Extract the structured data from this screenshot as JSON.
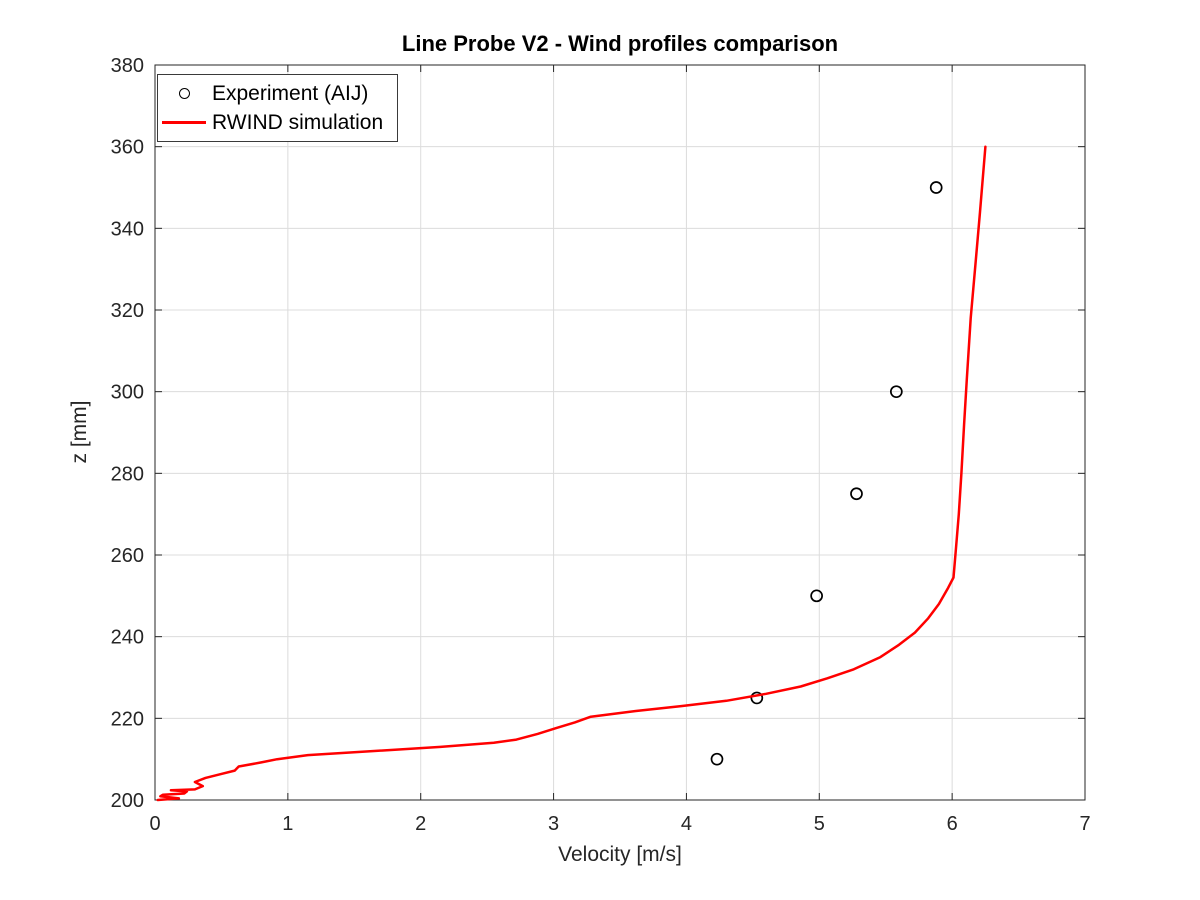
{
  "chart_data": {
    "type": "line",
    "title": "Line Probe V2 - Wind profiles comparison",
    "xlabel": "Velocity [m/s]",
    "ylabel": "z [mm]",
    "xlim": [
      0,
      7
    ],
    "ylim": [
      200,
      380
    ],
    "xticks": [
      0,
      1,
      2,
      3,
      4,
      5,
      6,
      7
    ],
    "yticks": [
      200,
      220,
      240,
      260,
      280,
      300,
      320,
      340,
      360,
      380
    ],
    "grid": true,
    "legend_position": "top-left",
    "colors": {
      "axis": "#262626",
      "grid": "#dcdcdc",
      "experiment": "#000000",
      "simulation": "#ff0000",
      "background": "#ffffff"
    },
    "series": [
      {
        "name": "Experiment (AIJ)",
        "type": "scatter",
        "marker": "circle",
        "color": "#000000",
        "points": [
          [
            4.23,
            210
          ],
          [
            4.53,
            225
          ],
          [
            4.98,
            250
          ],
          [
            5.28,
            275
          ],
          [
            5.58,
            300
          ],
          [
            5.88,
            350
          ]
        ]
      },
      {
        "name": "RWIND simulation",
        "type": "line",
        "color": "#ff0000",
        "points": [
          [
            0.02,
            200
          ],
          [
            0.18,
            200.4
          ],
          [
            0.04,
            200.9
          ],
          [
            0.06,
            201.3
          ],
          [
            0.22,
            201.6
          ],
          [
            0.24,
            202.1
          ],
          [
            0.12,
            202.4
          ],
          [
            0.3,
            202.6
          ],
          [
            0.36,
            203.4
          ],
          [
            0.3,
            204.4
          ],
          [
            0.38,
            205.4
          ],
          [
            0.5,
            206.4
          ],
          [
            0.6,
            207.2
          ],
          [
            0.63,
            208.2
          ],
          [
            0.8,
            209.2
          ],
          [
            0.92,
            210.0
          ],
          [
            1.15,
            211.0
          ],
          [
            1.65,
            212.0
          ],
          [
            2.15,
            213.0
          ],
          [
            2.55,
            214.0
          ],
          [
            2.72,
            214.8
          ],
          [
            2.88,
            216.2
          ],
          [
            3.02,
            217.6
          ],
          [
            3.16,
            219.0
          ],
          [
            3.28,
            220.4
          ],
          [
            3.62,
            221.8
          ],
          [
            3.96,
            223.0
          ],
          [
            4.3,
            224.3
          ],
          [
            4.6,
            226.0
          ],
          [
            4.86,
            227.8
          ],
          [
            5.06,
            229.8
          ],
          [
            5.26,
            232.0
          ],
          [
            5.46,
            235.0
          ],
          [
            5.6,
            238.0
          ],
          [
            5.72,
            241.0
          ],
          [
            5.82,
            244.5
          ],
          [
            5.9,
            248.0
          ],
          [
            5.97,
            252.0
          ],
          [
            6.01,
            254.5
          ],
          [
            6.03,
            262.0
          ],
          [
            6.05,
            270.0
          ],
          [
            6.07,
            280.0
          ],
          [
            6.09,
            292.0
          ],
          [
            6.11,
            303.0
          ],
          [
            6.14,
            318.0
          ],
          [
            6.18,
            333.0
          ],
          [
            6.21,
            344.0
          ],
          [
            6.25,
            360.0
          ]
        ]
      }
    ]
  }
}
